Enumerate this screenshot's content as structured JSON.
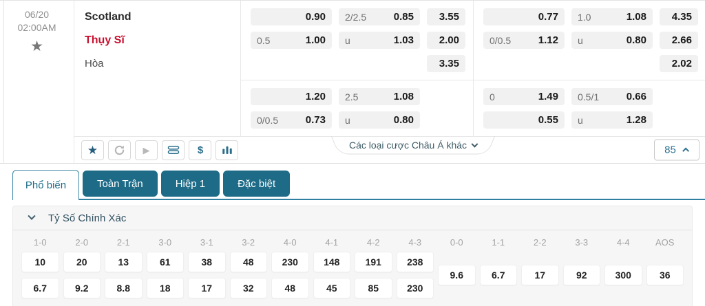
{
  "match": {
    "date": "06/20",
    "time": "02:00AM",
    "teams": {
      "home": "Scotland",
      "away": "Thụy Sĩ"
    },
    "draw_label": "Hòa",
    "odds": {
      "quadrants": {
        "top_left": [
          [
            {
              "h": "",
              "v": "0.90"
            },
            {
              "h": "2/2.5",
              "v": "0.85"
            },
            {
              "h": "",
              "v": "3.55"
            }
          ],
          [
            {
              "h": "0.5",
              "v": "1.00"
            },
            {
              "h": "u",
              "v": "1.03"
            },
            {
              "h": "",
              "v": "2.00"
            }
          ],
          [
            null,
            null,
            {
              "h": "",
              "v": "3.35"
            }
          ]
        ],
        "top_right": [
          [
            {
              "h": "",
              "v": "0.77"
            },
            {
              "h": "1.0",
              "v": "1.08"
            },
            {
              "h": "",
              "v": "4.35"
            }
          ],
          [
            {
              "h": "0/0.5",
              "v": "1.12"
            },
            {
              "h": "u",
              "v": "0.80"
            },
            {
              "h": "",
              "v": "2.66"
            }
          ],
          [
            null,
            null,
            {
              "h": "",
              "v": "2.02"
            }
          ]
        ],
        "bottom_left": [
          [
            {
              "h": "",
              "v": "1.20"
            },
            {
              "h": "2.5",
              "v": "1.08"
            },
            null
          ],
          [
            {
              "h": "0/0.5",
              "v": "0.73"
            },
            {
              "h": "u",
              "v": "0.80"
            },
            null
          ]
        ],
        "bottom_right": [
          [
            {
              "h": "0",
              "v": "1.49"
            },
            {
              "h": "0.5/1",
              "v": "0.66"
            },
            null
          ],
          [
            {
              "h": "",
              "v": "0.55"
            },
            {
              "h": "u",
              "v": "1.28"
            },
            null
          ]
        ]
      }
    }
  },
  "toolbar": {
    "icons": [
      "favorite-star-icon",
      "refresh-icon",
      "play-icon",
      "stack-icon",
      "dollar-icon",
      "bar-chart-icon"
    ],
    "dropdown_label": "Các loại cược Châu Á khác",
    "market_count": "85"
  },
  "tabs": {
    "items": [
      {
        "label": "Phổ biến",
        "active": true
      },
      {
        "label": "Toàn Trận",
        "active": false
      },
      {
        "label": "Hiệp 1",
        "active": false
      },
      {
        "label": "Đặc biệt",
        "active": false
      }
    ]
  },
  "sections": {
    "correct_score": {
      "title": "Tỷ Số Chính Xác",
      "columns": [
        {
          "label": "1-0",
          "values": [
            "10",
            "6.7"
          ]
        },
        {
          "label": "2-0",
          "values": [
            "20",
            "9.2"
          ]
        },
        {
          "label": "2-1",
          "values": [
            "13",
            "8.8"
          ]
        },
        {
          "label": "3-0",
          "values": [
            "61",
            "18"
          ]
        },
        {
          "label": "3-1",
          "values": [
            "38",
            "17"
          ]
        },
        {
          "label": "3-2",
          "values": [
            "48",
            "32"
          ]
        },
        {
          "label": "4-0",
          "values": [
            "230",
            "48"
          ]
        },
        {
          "label": "4-1",
          "values": [
            "148",
            "45"
          ]
        },
        {
          "label": "4-2",
          "values": [
            "191",
            "85"
          ]
        },
        {
          "label": "4-3",
          "values": [
            "238",
            "230"
          ]
        },
        {
          "label": "0-0",
          "values": [
            "9.6"
          ]
        },
        {
          "label": "1-1",
          "values": [
            "6.7"
          ]
        },
        {
          "label": "2-2",
          "values": [
            "17"
          ]
        },
        {
          "label": "3-3",
          "values": [
            "92"
          ]
        },
        {
          "label": "4-4",
          "values": [
            "300"
          ]
        },
        {
          "label": "AOS",
          "values": [
            "36"
          ]
        }
      ]
    }
  },
  "colors": {
    "accent_teal": "#1d6b87",
    "tab_underline": "#2e7fa0",
    "away_team_red": "#c8102e",
    "link_blue": "#2e7393",
    "odds_cell_bg": "#f1f1f2"
  }
}
